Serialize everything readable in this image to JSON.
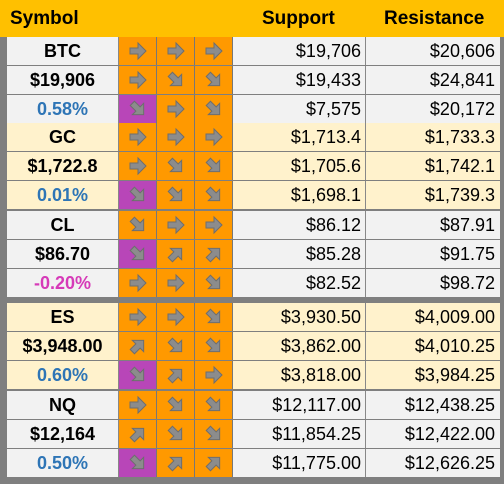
{
  "header": {
    "symbol": "Symbol",
    "support": "Support",
    "resistance": "Resistance"
  },
  "colors": {
    "header_bg": "#ffc000",
    "arrow_orange": "#ff9900",
    "arrow_purple": "#b846b8",
    "light_row": "#f2f2f2",
    "cream_row": "#fff2cc",
    "positive_text": "#2e75b6",
    "negative_text": "#d63ab8"
  },
  "blocks": [
    {
      "bg": "#f2f2f2",
      "rows": [
        {
          "sym": "BTC",
          "arrows": [
            {
              "dir": "right",
              "bg": "orange"
            },
            {
              "dir": "right",
              "bg": "orange"
            },
            {
              "dir": "right",
              "bg": "orange"
            }
          ],
          "support": "$19,706",
          "resistance": "$20,606",
          "sym_class": ""
        },
        {
          "sym": "$19,906",
          "arrows": [
            {
              "dir": "right",
              "bg": "orange"
            },
            {
              "dir": "down",
              "bg": "orange"
            },
            {
              "dir": "down",
              "bg": "orange"
            }
          ],
          "support": "$19,433",
          "resistance": "$24,841",
          "sym_class": ""
        },
        {
          "sym": "0.58%",
          "arrows": [
            {
              "dir": "down",
              "bg": "purple"
            },
            {
              "dir": "right",
              "bg": "orange"
            },
            {
              "dir": "down",
              "bg": "orange"
            }
          ],
          "support": "$7,575",
          "resistance": "$20,172",
          "sym_class": "pos"
        }
      ]
    },
    {
      "bg": "#fff2cc",
      "rows": [
        {
          "sym": "GC",
          "arrows": [
            {
              "dir": "right",
              "bg": "orange"
            },
            {
              "dir": "right",
              "bg": "orange"
            },
            {
              "dir": "right",
              "bg": "orange"
            }
          ],
          "support": "$1,713.4",
          "resistance": "$1,733.3",
          "sym_class": ""
        },
        {
          "sym": "$1,722.8",
          "arrows": [
            {
              "dir": "right",
              "bg": "orange"
            },
            {
              "dir": "down",
              "bg": "orange"
            },
            {
              "dir": "down",
              "bg": "orange"
            }
          ],
          "support": "$1,705.6",
          "resistance": "$1,742.1",
          "sym_class": ""
        },
        {
          "sym": "0.01%",
          "arrows": [
            {
              "dir": "down",
              "bg": "purple"
            },
            {
              "dir": "down",
              "bg": "orange"
            },
            {
              "dir": "down",
              "bg": "orange"
            }
          ],
          "support": "$1,698.1",
          "resistance": "$1,739.3",
          "sym_class": "pos"
        }
      ]
    },
    {
      "bg": "#f2f2f2",
      "rows": [
        {
          "sym": "CL",
          "arrows": [
            {
              "dir": "down",
              "bg": "orange"
            },
            {
              "dir": "right",
              "bg": "orange"
            },
            {
              "dir": "right",
              "bg": "orange"
            }
          ],
          "support": "$86.12",
          "resistance": "$87.91",
          "sym_class": ""
        },
        {
          "sym": "$86.70",
          "arrows": [
            {
              "dir": "down",
              "bg": "purple"
            },
            {
              "dir": "up",
              "bg": "orange"
            },
            {
              "dir": "up",
              "bg": "orange"
            }
          ],
          "support": "$85.28",
          "resistance": "$91.75",
          "sym_class": ""
        },
        {
          "sym": "-0.20%",
          "arrows": [
            {
              "dir": "right",
              "bg": "orange"
            },
            {
              "dir": "right",
              "bg": "orange"
            },
            {
              "dir": "down",
              "bg": "orange"
            }
          ],
          "support": "$82.52",
          "resistance": "$98.72",
          "sym_class": "neg"
        }
      ]
    },
    {
      "bg": "#fff2cc",
      "rows": [
        {
          "sym": "ES",
          "arrows": [
            {
              "dir": "right",
              "bg": "orange"
            },
            {
              "dir": "right",
              "bg": "orange"
            },
            {
              "dir": "down",
              "bg": "orange"
            }
          ],
          "support": "$3,930.50",
          "resistance": "$4,009.00",
          "sym_class": ""
        },
        {
          "sym": "$3,948.00",
          "arrows": [
            {
              "dir": "up",
              "bg": "orange"
            },
            {
              "dir": "down",
              "bg": "orange"
            },
            {
              "dir": "down",
              "bg": "orange"
            }
          ],
          "support": "$3,862.00",
          "resistance": "$4,010.25",
          "sym_class": ""
        },
        {
          "sym": "0.60%",
          "arrows": [
            {
              "dir": "down",
              "bg": "purple"
            },
            {
              "dir": "up",
              "bg": "orange"
            },
            {
              "dir": "right",
              "bg": "orange"
            }
          ],
          "support": "$3,818.00",
          "resistance": "$3,984.25",
          "sym_class": "pos"
        }
      ]
    },
    {
      "bg": "#f2f2f2",
      "rows": [
        {
          "sym": "NQ",
          "arrows": [
            {
              "dir": "right",
              "bg": "orange"
            },
            {
              "dir": "down",
              "bg": "orange"
            },
            {
              "dir": "down",
              "bg": "orange"
            }
          ],
          "support": "$12,117.00",
          "resistance": "$12,438.25",
          "sym_class": ""
        },
        {
          "sym": "$12,164",
          "arrows": [
            {
              "dir": "up",
              "bg": "orange"
            },
            {
              "dir": "down",
              "bg": "orange"
            },
            {
              "dir": "down",
              "bg": "orange"
            }
          ],
          "support": "$11,854.25",
          "resistance": "$12,422.00",
          "sym_class": ""
        },
        {
          "sym": "0.50%",
          "arrows": [
            {
              "dir": "down",
              "bg": "purple"
            },
            {
              "dir": "up",
              "bg": "orange"
            },
            {
              "dir": "up",
              "bg": "orange"
            }
          ],
          "support": "$11,775.00",
          "resistance": "$12,626.25",
          "sym_class": "pos"
        }
      ]
    }
  ]
}
